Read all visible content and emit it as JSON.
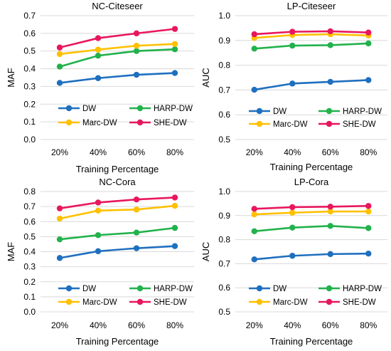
{
  "chart_data": [
    {
      "type": "line",
      "title": "NC-Citeseer",
      "xlabel": "Training Percentage",
      "ylabel": "MAF",
      "categories": [
        "20%",
        "40%",
        "60%",
        "80%"
      ],
      "ylim": [
        0,
        0.7
      ],
      "yticks": [
        "0.0",
        "0.1",
        "0.2",
        "0.3",
        "0.4",
        "0.5",
        "0.6",
        "0.7"
      ],
      "grid": true,
      "legend": "inside-bottom",
      "series": [
        {
          "name": "DW",
          "color": "#1f6fbf",
          "values": [
            0.32,
            0.347,
            0.366,
            0.376
          ]
        },
        {
          "name": "HARP-DW",
          "color": "#22b24c",
          "values": [
            0.412,
            0.474,
            0.5,
            0.51
          ]
        },
        {
          "name": "Marc-DW",
          "color": "#ffc000",
          "values": [
            0.483,
            0.508,
            0.53,
            0.54
          ]
        },
        {
          "name": "SHE-DW",
          "color": "#e8175d",
          "values": [
            0.52,
            0.573,
            0.6,
            0.625
          ]
        }
      ]
    },
    {
      "type": "line",
      "title": "LP-Citeseer",
      "xlabel": "Training Percentage",
      "ylabel": "AUC",
      "categories": [
        "20%",
        "40%",
        "60%",
        "80%"
      ],
      "ylim": [
        0.5,
        1.0
      ],
      "yticks": [
        "0.5",
        "0.6",
        "0.7",
        "0.8",
        "0.9",
        "1.0"
      ],
      "grid": true,
      "legend": "inside-bottom",
      "series": [
        {
          "name": "DW",
          "color": "#1f6fbf",
          "values": [
            0.701,
            0.726,
            0.733,
            0.74
          ]
        },
        {
          "name": "HARP-DW",
          "color": "#22b24c",
          "values": [
            0.867,
            0.879,
            0.881,
            0.888
          ]
        },
        {
          "name": "Marc-DW",
          "color": "#ffc000",
          "values": [
            0.91,
            0.922,
            0.925,
            0.92
          ]
        },
        {
          "name": "SHE-DW",
          "color": "#e8175d",
          "values": [
            0.925,
            0.935,
            0.937,
            0.932
          ]
        }
      ]
    },
    {
      "type": "line",
      "title": "NC-Cora",
      "xlabel": "Training Percentage",
      "ylabel": "MAF",
      "categories": [
        "20%",
        "40%",
        "60%",
        "80%"
      ],
      "ylim": [
        0,
        0.8
      ],
      "yticks": [
        "0.0",
        "0.1",
        "0.2",
        "0.3",
        "0.4",
        "0.5",
        "0.6",
        "0.7",
        "0.8"
      ],
      "grid": true,
      "legend": "inside-bottom",
      "series": [
        {
          "name": "DW",
          "color": "#1f6fbf",
          "values": [
            0.358,
            0.403,
            0.423,
            0.437
          ]
        },
        {
          "name": "HARP-DW",
          "color": "#22b24c",
          "values": [
            0.482,
            0.51,
            0.527,
            0.558
          ]
        },
        {
          "name": "Marc-DW",
          "color": "#ffc000",
          "values": [
            0.62,
            0.673,
            0.68,
            0.705
          ]
        },
        {
          "name": "SHE-DW",
          "color": "#e8175d",
          "values": [
            0.688,
            0.727,
            0.747,
            0.76
          ]
        }
      ]
    },
    {
      "type": "line",
      "title": "LP-Cora",
      "xlabel": "Training Percentage",
      "ylabel": "AUC",
      "categories": [
        "20%",
        "40%",
        "60%",
        "80%"
      ],
      "ylim": [
        0.5,
        1.0
      ],
      "yticks": [
        "0.5",
        "0.6",
        "0.7",
        "0.8",
        "0.9",
        "1.0"
      ],
      "grid": true,
      "legend": "inside-bottom",
      "series": [
        {
          "name": "DW",
          "color": "#1f6fbf",
          "values": [
            0.718,
            0.733,
            0.74,
            0.742
          ]
        },
        {
          "name": "HARP-DW",
          "color": "#22b24c",
          "values": [
            0.835,
            0.85,
            0.857,
            0.848
          ]
        },
        {
          "name": "Marc-DW",
          "color": "#ffc000",
          "values": [
            0.905,
            0.912,
            0.917,
            0.917
          ]
        },
        {
          "name": "SHE-DW",
          "color": "#e8175d",
          "values": [
            0.928,
            0.935,
            0.937,
            0.94
          ]
        }
      ]
    }
  ]
}
